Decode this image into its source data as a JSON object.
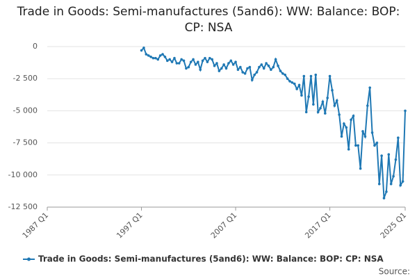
{
  "chart_data": {
    "type": "line",
    "title": "Trade in Goods: Semi-manufactures (5and6): WW: Balance: BOP: CP: NSA",
    "source": "Source:",
    "xlim": [
      "1987 Q1",
      "2025 Q1"
    ],
    "xticks": [
      "1987 Q1",
      "1997 Q1",
      "2007 Q1",
      "2017 Q1",
      "2025 Q1"
    ],
    "ylim": [
      -12500,
      0
    ],
    "yticks": [
      {
        "value": -12500,
        "label": "-12 500"
      },
      {
        "value": -10000,
        "label": "-10 000"
      },
      {
        "value": -7500,
        "label": "-7 500"
      },
      {
        "value": -5000,
        "label": "-5 000"
      },
      {
        "value": -2500,
        "label": "-2 500"
      },
      0
    ],
    "grid": true,
    "legend": "bottom",
    "x": [
      "1997 Q1",
      "1997 Q2",
      "1997 Q3",
      "1997 Q4",
      "1998 Q1",
      "1998 Q2",
      "1998 Q3",
      "1998 Q4",
      "1999 Q1",
      "1999 Q2",
      "1999 Q3",
      "1999 Q4",
      "2000 Q1",
      "2000 Q2",
      "2000 Q3",
      "2000 Q4",
      "2001 Q1",
      "2001 Q2",
      "2001 Q3",
      "2001 Q4",
      "2002 Q1",
      "2002 Q2",
      "2002 Q3",
      "2002 Q4",
      "2003 Q1",
      "2003 Q2",
      "2003 Q3",
      "2003 Q4",
      "2004 Q1",
      "2004 Q2",
      "2004 Q3",
      "2004 Q4",
      "2005 Q1",
      "2005 Q2",
      "2005 Q3",
      "2005 Q4",
      "2006 Q1",
      "2006 Q2",
      "2006 Q3",
      "2006 Q4",
      "2007 Q1",
      "2007 Q2",
      "2007 Q3",
      "2007 Q4",
      "2008 Q1",
      "2008 Q2",
      "2008 Q3",
      "2008 Q4",
      "2009 Q1",
      "2009 Q2",
      "2009 Q3",
      "2009 Q4",
      "2010 Q1",
      "2010 Q2",
      "2010 Q3",
      "2010 Q4",
      "2011 Q1",
      "2011 Q2",
      "2011 Q3",
      "2011 Q4",
      "2012 Q1",
      "2012 Q2",
      "2012 Q3",
      "2012 Q4",
      "2013 Q1",
      "2013 Q2",
      "2013 Q3",
      "2013 Q4",
      "2014 Q1",
      "2014 Q2",
      "2014 Q3",
      "2014 Q4",
      "2015 Q1",
      "2015 Q2",
      "2015 Q3",
      "2015 Q4",
      "2016 Q1",
      "2016 Q2",
      "2016 Q3",
      "2016 Q4",
      "2017 Q1",
      "2017 Q2",
      "2017 Q3",
      "2017 Q4",
      "2018 Q1",
      "2018 Q2",
      "2018 Q3",
      "2018 Q4",
      "2019 Q1",
      "2019 Q2",
      "2019 Q3",
      "2019 Q4",
      "2020 Q1",
      "2020 Q2",
      "2020 Q3",
      "2020 Q4",
      "2021 Q1",
      "2021 Q2",
      "2021 Q3",
      "2021 Q4",
      "2022 Q1",
      "2022 Q2",
      "2022 Q3",
      "2022 Q4",
      "2023 Q1",
      "2023 Q2",
      "2023 Q3",
      "2023 Q4",
      "2024 Q1",
      "2024 Q2",
      "2024 Q3",
      "2024 Q4",
      "2025 Q1"
    ],
    "series": [
      {
        "name": "Trade in Goods: Semi-manufactures (5and6): WW: Balance: BOP: CP: NSA",
        "color": "#1f78b4",
        "values": [
          -300,
          -100,
          -600,
          -700,
          -800,
          -900,
          -900,
          -1000,
          -700,
          -600,
          -800,
          -1100,
          -1000,
          -1200,
          -900,
          -1300,
          -1300,
          -1000,
          -1100,
          -1700,
          -1600,
          -1200,
          -1000,
          -1400,
          -1200,
          -1800,
          -1100,
          -900,
          -1200,
          -900,
          -1000,
          -1500,
          -1300,
          -1900,
          -1700,
          -1400,
          -1700,
          -1300,
          -1100,
          -1400,
          -1200,
          -1800,
          -1600,
          -2000,
          -2100,
          -1700,
          -1600,
          -2600,
          -2200,
          -2000,
          -1600,
          -1400,
          -1700,
          -1300,
          -1500,
          -1800,
          -1600,
          -1000,
          -1500,
          -1900,
          -2100,
          -2200,
          -2500,
          -2700,
          -2800,
          -2900,
          -3300,
          -3000,
          -3800,
          -2300,
          -5100,
          -3900,
          -2300,
          -4500,
          -2200,
          -5100,
          -4800,
          -4300,
          -5200,
          -4000,
          -2300,
          -3400,
          -4600,
          -4200,
          -5300,
          -7000,
          -6000,
          -6300,
          -8000,
          -5700,
          -5400,
          -7700,
          -7700,
          -9500,
          -6600,
          -7000,
          -4600,
          -3200,
          -6700,
          -7700,
          -7500,
          -10700,
          -8500,
          -11800,
          -11300,
          -8400,
          -10700,
          -10100,
          -8800,
          -7100,
          -10800,
          -10500,
          -5000
        ]
      }
    ]
  }
}
